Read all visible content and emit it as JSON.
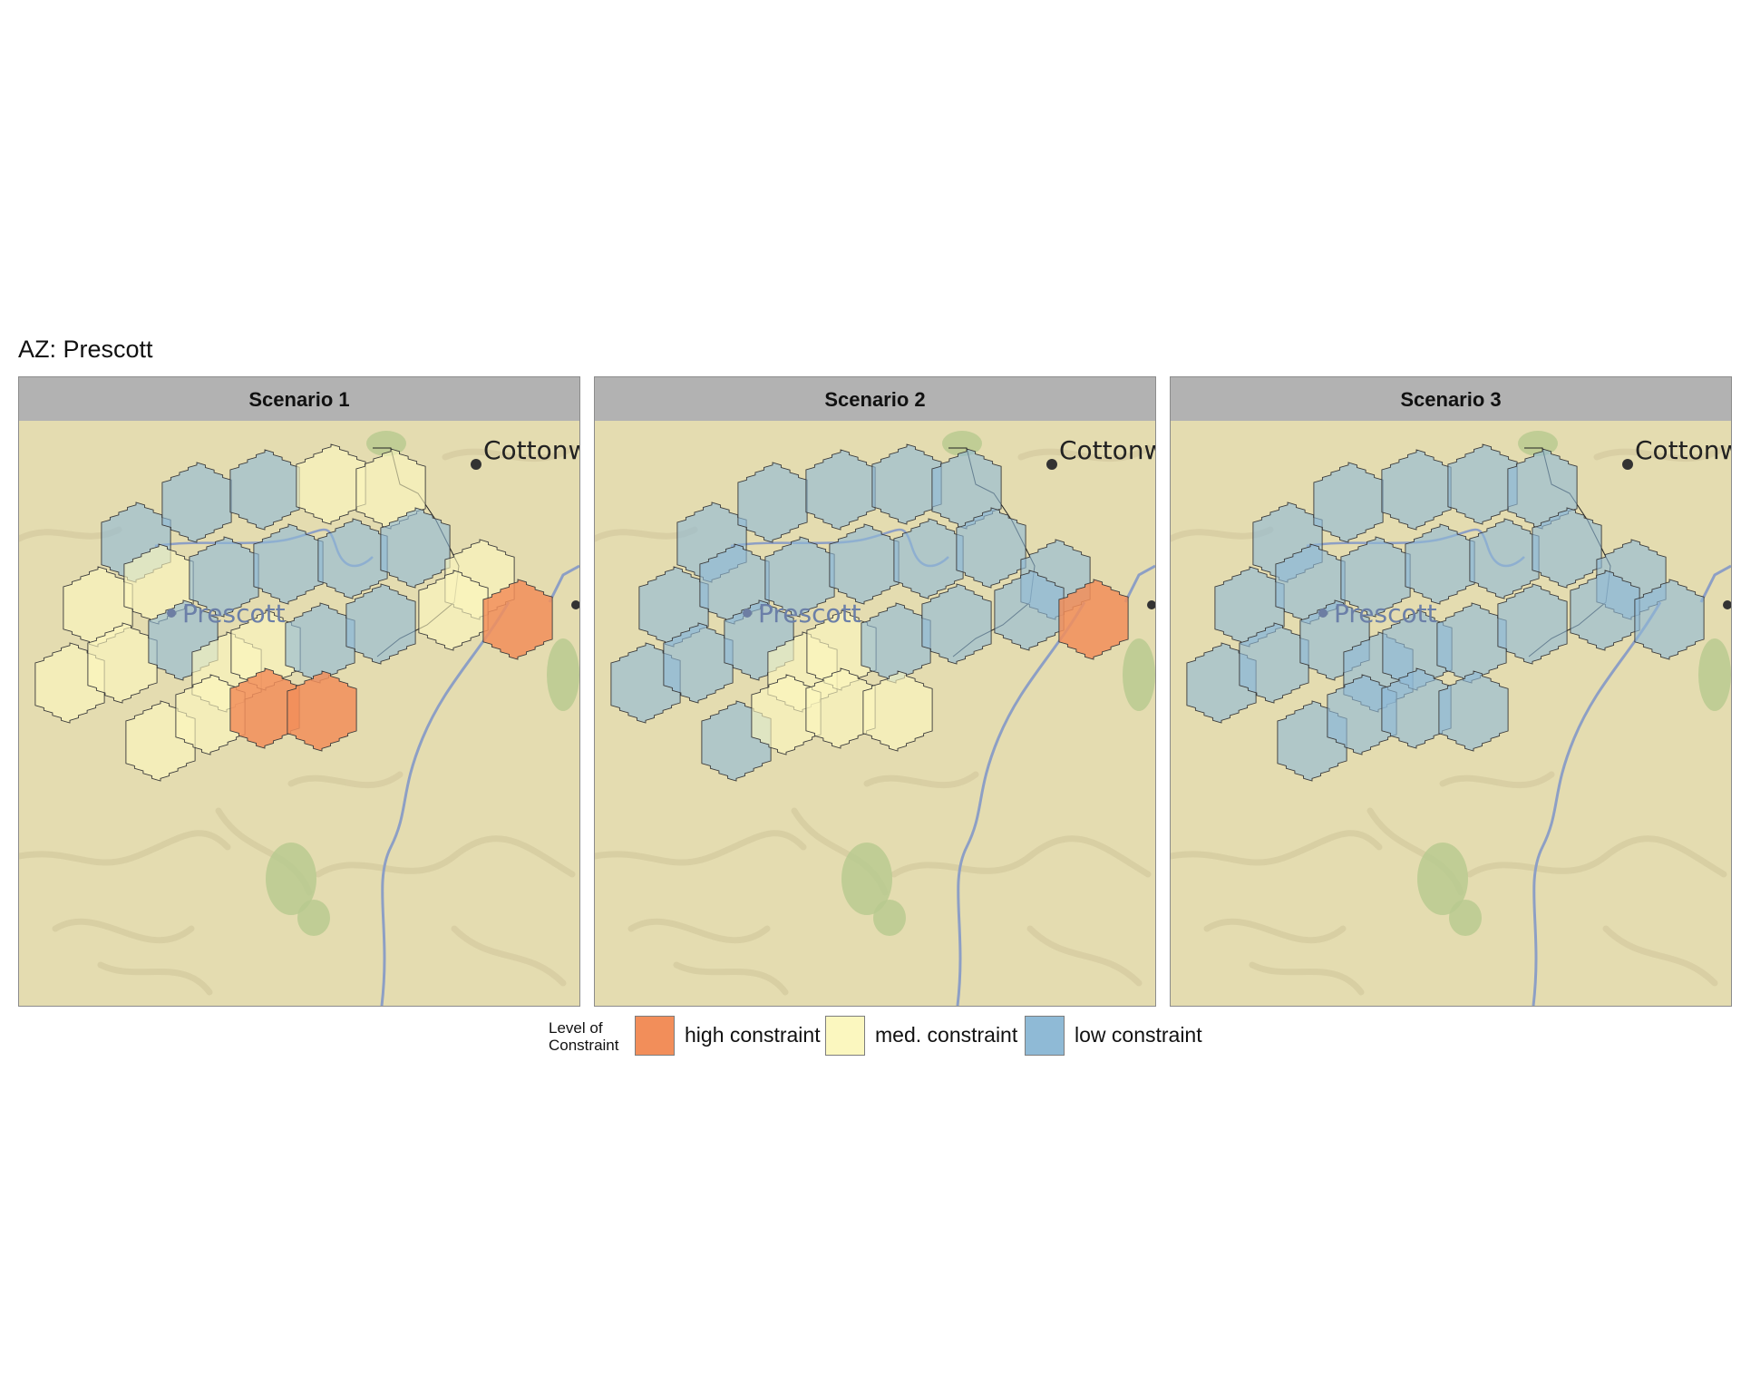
{
  "title": "AZ: Prescott",
  "legend": {
    "title_line1": "Level of",
    "title_line2": "Constraint",
    "items": [
      {
        "key": "high",
        "label": "high constraint",
        "color": "#f28e5a"
      },
      {
        "key": "med",
        "label": "med. constraint",
        "color": "#fbf7bf"
      },
      {
        "key": "low",
        "label": "low constraint",
        "color": "#8fbad6"
      }
    ]
  },
  "basemap": {
    "city_labels": [
      {
        "name": "Prescott"
      },
      {
        "name": "Cottonwo"
      }
    ],
    "land_color": "#e4dcb0",
    "relief_color": "#cfc59a",
    "river_color": "#8d9fc5",
    "forest_color": "#b7c98f"
  },
  "panels": [
    {
      "strip": "Scenario 1",
      "constraints": [
        "low",
        "low",
        "low",
        "med",
        "med",
        "med",
        "med",
        "low",
        "low",
        "low",
        "low",
        "med",
        "med",
        "med",
        "low",
        "med",
        "med",
        "low",
        "low",
        "med",
        "high",
        "med",
        "med",
        "high",
        "high"
      ]
    },
    {
      "strip": "Scenario 2",
      "constraints": [
        "low",
        "low",
        "low",
        "low",
        "low",
        "low",
        "low",
        "low",
        "low",
        "low",
        "low",
        "low",
        "low",
        "low",
        "low",
        "med",
        "med",
        "low",
        "low",
        "low",
        "high",
        "low",
        "med",
        "med",
        "med"
      ]
    },
    {
      "strip": "Scenario 3",
      "constraints": [
        "low",
        "low",
        "low",
        "low",
        "low",
        "low",
        "low",
        "low",
        "low",
        "low",
        "low",
        "low",
        "low",
        "low",
        "low",
        "low",
        "low",
        "low",
        "low",
        "low",
        "low",
        "low",
        "low",
        "low",
        "low"
      ]
    }
  ]
}
